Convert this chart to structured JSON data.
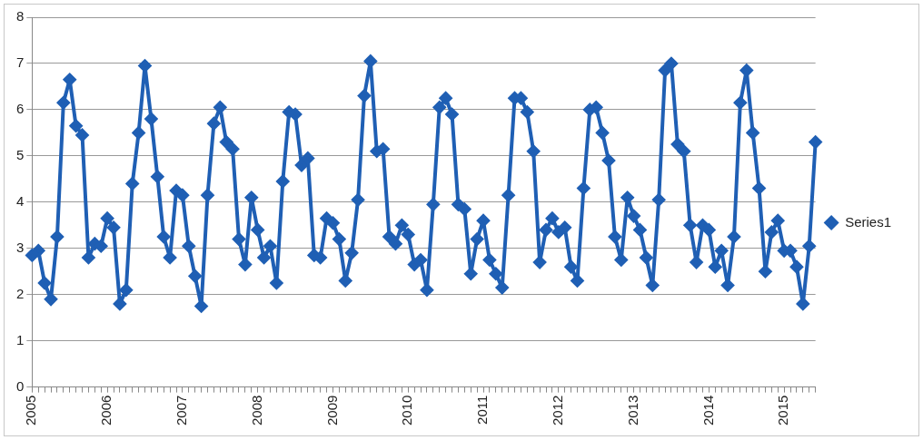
{
  "chart_data": {
    "type": "line",
    "categories": [
      "2005",
      null,
      null,
      null,
      null,
      null,
      null,
      null,
      null,
      null,
      null,
      null,
      "2006",
      null,
      null,
      null,
      null,
      null,
      null,
      null,
      null,
      null,
      null,
      null,
      "2007",
      null,
      null,
      null,
      null,
      null,
      null,
      null,
      null,
      null,
      null,
      null,
      "2008",
      null,
      null,
      null,
      null,
      null,
      null,
      null,
      null,
      null,
      null,
      null,
      "2009",
      null,
      null,
      null,
      null,
      null,
      null,
      null,
      null,
      null,
      null,
      null,
      "2010",
      null,
      null,
      null,
      null,
      null,
      null,
      null,
      null,
      null,
      null,
      null,
      "2011",
      null,
      null,
      null,
      null,
      null,
      null,
      null,
      null,
      null,
      null,
      null,
      "2012",
      null,
      null,
      null,
      null,
      null,
      null,
      null,
      null,
      null,
      null,
      null,
      "2013",
      null,
      null,
      null,
      null,
      null,
      null,
      null,
      null,
      null,
      null,
      null,
      "2014",
      null,
      null,
      null,
      null,
      null,
      null,
      null,
      null,
      null,
      null,
      null,
      "2015",
      null,
      null,
      null,
      null,
      null
    ],
    "series": [
      {
        "name": "Series1",
        "color": "#1f5fb4",
        "values": [
          2.85,
          2.95,
          2.25,
          1.9,
          3.25,
          6.15,
          6.65,
          5.65,
          5.45,
          2.8,
          3.1,
          3.05,
          3.65,
          3.45,
          1.8,
          2.1,
          4.4,
          5.5,
          6.95,
          5.8,
          4.55,
          3.25,
          2.8,
          4.25,
          4.15,
          3.05,
          2.4,
          1.75,
          4.15,
          5.7,
          6.05,
          5.3,
          5.15,
          3.2,
          2.65,
          4.1,
          3.4,
          2.8,
          3.05,
          2.25,
          4.45,
          5.95,
          5.9,
          4.8,
          4.95,
          2.85,
          2.8,
          3.65,
          3.55,
          3.2,
          2.3,
          2.9,
          4.05,
          6.3,
          7.05,
          5.1,
          5.15,
          3.25,
          3.1,
          3.5,
          3.3,
          2.65,
          2.75,
          2.1,
          3.95,
          6.05,
          6.25,
          5.9,
          3.95,
          3.85,
          2.45,
          3.2,
          3.6,
          2.75,
          2.45,
          2.15,
          4.15,
          6.25,
          6.25,
          5.95,
          5.1,
          2.7,
          3.4,
          3.65,
          3.35,
          3.45,
          2.6,
          2.3,
          4.3,
          6.0,
          6.05,
          5.5,
          4.9,
          3.25,
          2.75,
          4.1,
          3.7,
          3.4,
          2.8,
          2.2,
          4.05,
          6.85,
          7.0,
          5.25,
          5.1,
          3.5,
          2.7,
          3.5,
          3.4,
          2.6,
          2.95,
          2.2,
          3.25,
          6.15,
          6.85,
          5.5,
          4.3,
          2.5,
          3.35,
          3.6,
          2.95,
          2.95,
          2.6,
          1.8,
          3.05,
          5.3
        ]
      }
    ],
    "ylim": [
      0,
      8
    ],
    "yticks": [
      0,
      1,
      2,
      3,
      4,
      5,
      6,
      7,
      8
    ],
    "grid": "y",
    "legend": "right",
    "marker": "diamond",
    "line_style": "solid"
  }
}
